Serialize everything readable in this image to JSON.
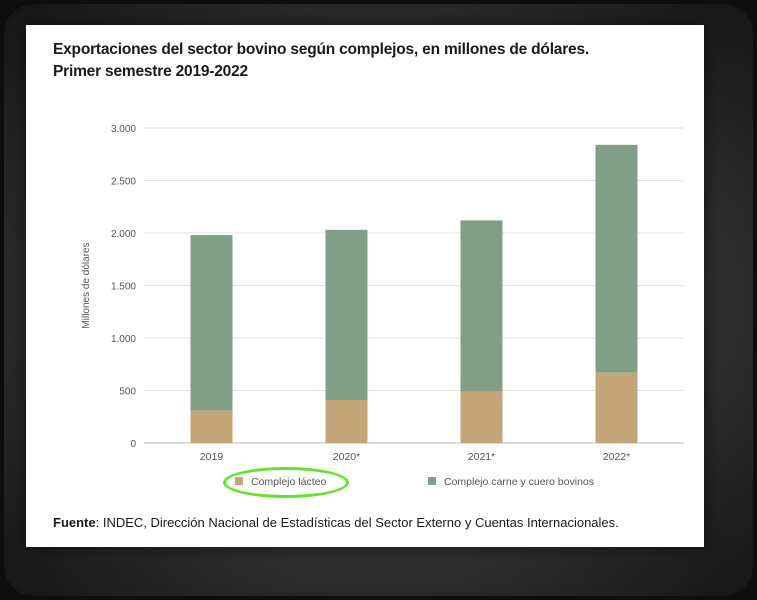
{
  "title_line1": "Exportaciones del sector bovino según complejos, en millones de dólares.",
  "title_line2": "Primer semestre 2019-2022",
  "source_label": "Fuente",
  "source_text": ": INDEC, Dirección Nacional de Estadísticas del Sector Externo y Cuentas Internacionales.",
  "colors": {
    "lacteo": "#c4a57a",
    "carne": "#819e87",
    "grid": "#e2e2e2",
    "highlight": "#66e22e"
  },
  "chart_data": {
    "type": "bar",
    "stacked": true,
    "categories": [
      "2019",
      "2020*",
      "2021*",
      "2022*"
    ],
    "series": [
      {
        "name": "Complejo lácteo",
        "values": [
          310,
          410,
          490,
          670
        ]
      },
      {
        "name": "Complejo carne y cuero bovinos",
        "values": [
          1670,
          1620,
          1630,
          2170
        ]
      }
    ],
    "ylabel": "Millones de dólares",
    "ylim": [
      0,
      3000
    ],
    "yticks": [
      0,
      500,
      1000,
      1500,
      2000,
      2500,
      3000
    ],
    "ytick_labels": [
      "0",
      "500",
      "1.000",
      "1.500",
      "2.000",
      "2.500",
      "3.000"
    ],
    "grid": true,
    "legend_position": "bottom"
  }
}
